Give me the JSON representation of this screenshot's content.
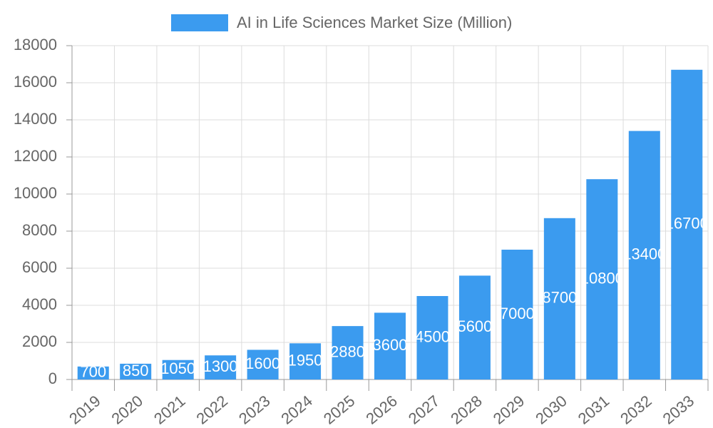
{
  "chart_data": {
    "type": "bar",
    "legend_label": "AI in Life Sciences Market Size (Million)",
    "categories": [
      "2019",
      "2020",
      "2021",
      "2022",
      "2023",
      "2024",
      "2025",
      "2026",
      "2027",
      "2028",
      "2029",
      "2030",
      "2031",
      "2032",
      "2033"
    ],
    "values": [
      700,
      850,
      1050,
      1300,
      1600,
      1950,
      2880,
      3600,
      4500,
      5600,
      7000,
      8700,
      10800,
      13400,
      16700
    ],
    "color": "#3b9bef",
    "ylim": [
      0,
      18000
    ],
    "yticks": [
      0,
      2000,
      4000,
      6000,
      8000,
      10000,
      12000,
      14000,
      16000,
      18000
    ],
    "grid": true,
    "legend": "top"
  }
}
